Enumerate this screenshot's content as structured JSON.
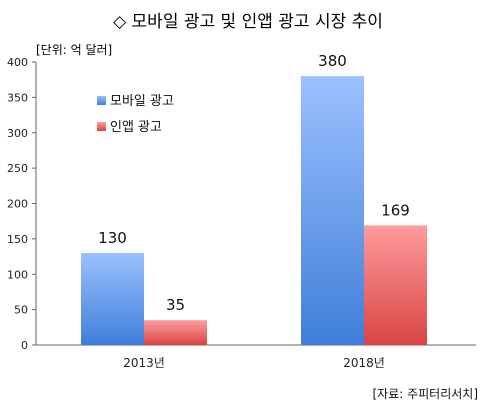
{
  "chart_data": {
    "type": "bar",
    "title": "◇ 모바일 광고 및 인앱 광고 시장 추이",
    "unit_label": "[단위: 억 달러]",
    "source": "[자료: 주피터리서치]",
    "categories": [
      "2013년",
      "2018년"
    ],
    "series": [
      {
        "name": "모바일 광고",
        "values": [
          130,
          380
        ],
        "color_top": "#9cc0ff",
        "color_bottom": "#3f7fd8"
      },
      {
        "name": "인앱 광고",
        "values": [
          35,
          169
        ],
        "color_top": "#ff9c9c",
        "color_bottom": "#d84444"
      }
    ],
    "ylim": [
      0,
      400
    ],
    "yticks": [
      0,
      50,
      100,
      150,
      200,
      250,
      300,
      350,
      400
    ],
    "grid": false,
    "legend_position": "upper-left inside"
  }
}
